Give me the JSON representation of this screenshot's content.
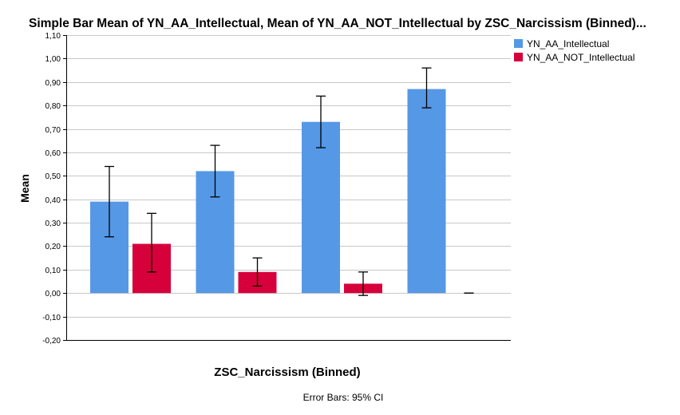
{
  "chart_data": {
    "type": "bar",
    "title": "Simple Bar Mean of YN_AA_Intellectual, Mean of YN_AA_NOT_Intellectual by ZSC_Narcissism (Binned)...",
    "xlabel": "ZSC_Narcissism (Binned)",
    "ylabel": "Mean",
    "footnote": "Error Bars: 95% CI",
    "categories": [
      "",
      "",
      "",
      ""
    ],
    "ylim": [
      -0.2,
      1.1
    ],
    "yticks": [
      -0.2,
      -0.1,
      0.0,
      0.1,
      0.2,
      0.3,
      0.4,
      0.5,
      0.6,
      0.7,
      0.8,
      0.9,
      1.0,
      1.1
    ],
    "ytick_labels": [
      "-0,20",
      "-0,10",
      "0,00",
      "0,10",
      "0,20",
      "0,30",
      "0,40",
      "0,50",
      "0,60",
      "0,70",
      "0,80",
      "0,90",
      "1,00",
      "1,10"
    ],
    "grid": true,
    "legend_position": "top-right",
    "series": [
      {
        "name": "YN_AA_Intellectual",
        "color": "#5598E6",
        "values": [
          0.39,
          0.52,
          0.73,
          0.87
        ],
        "ci_low": [
          0.24,
          0.41,
          0.62,
          0.79
        ],
        "ci_high": [
          0.54,
          0.63,
          0.84,
          0.96
        ]
      },
      {
        "name": "YN_AA_NOT_Intellectual",
        "color": "#D6003B",
        "values": [
          0.21,
          0.09,
          0.04,
          0.0
        ],
        "ci_low": [
          0.09,
          0.03,
          -0.01,
          0.0
        ],
        "ci_high": [
          0.34,
          0.15,
          0.09,
          0.0
        ]
      }
    ]
  }
}
